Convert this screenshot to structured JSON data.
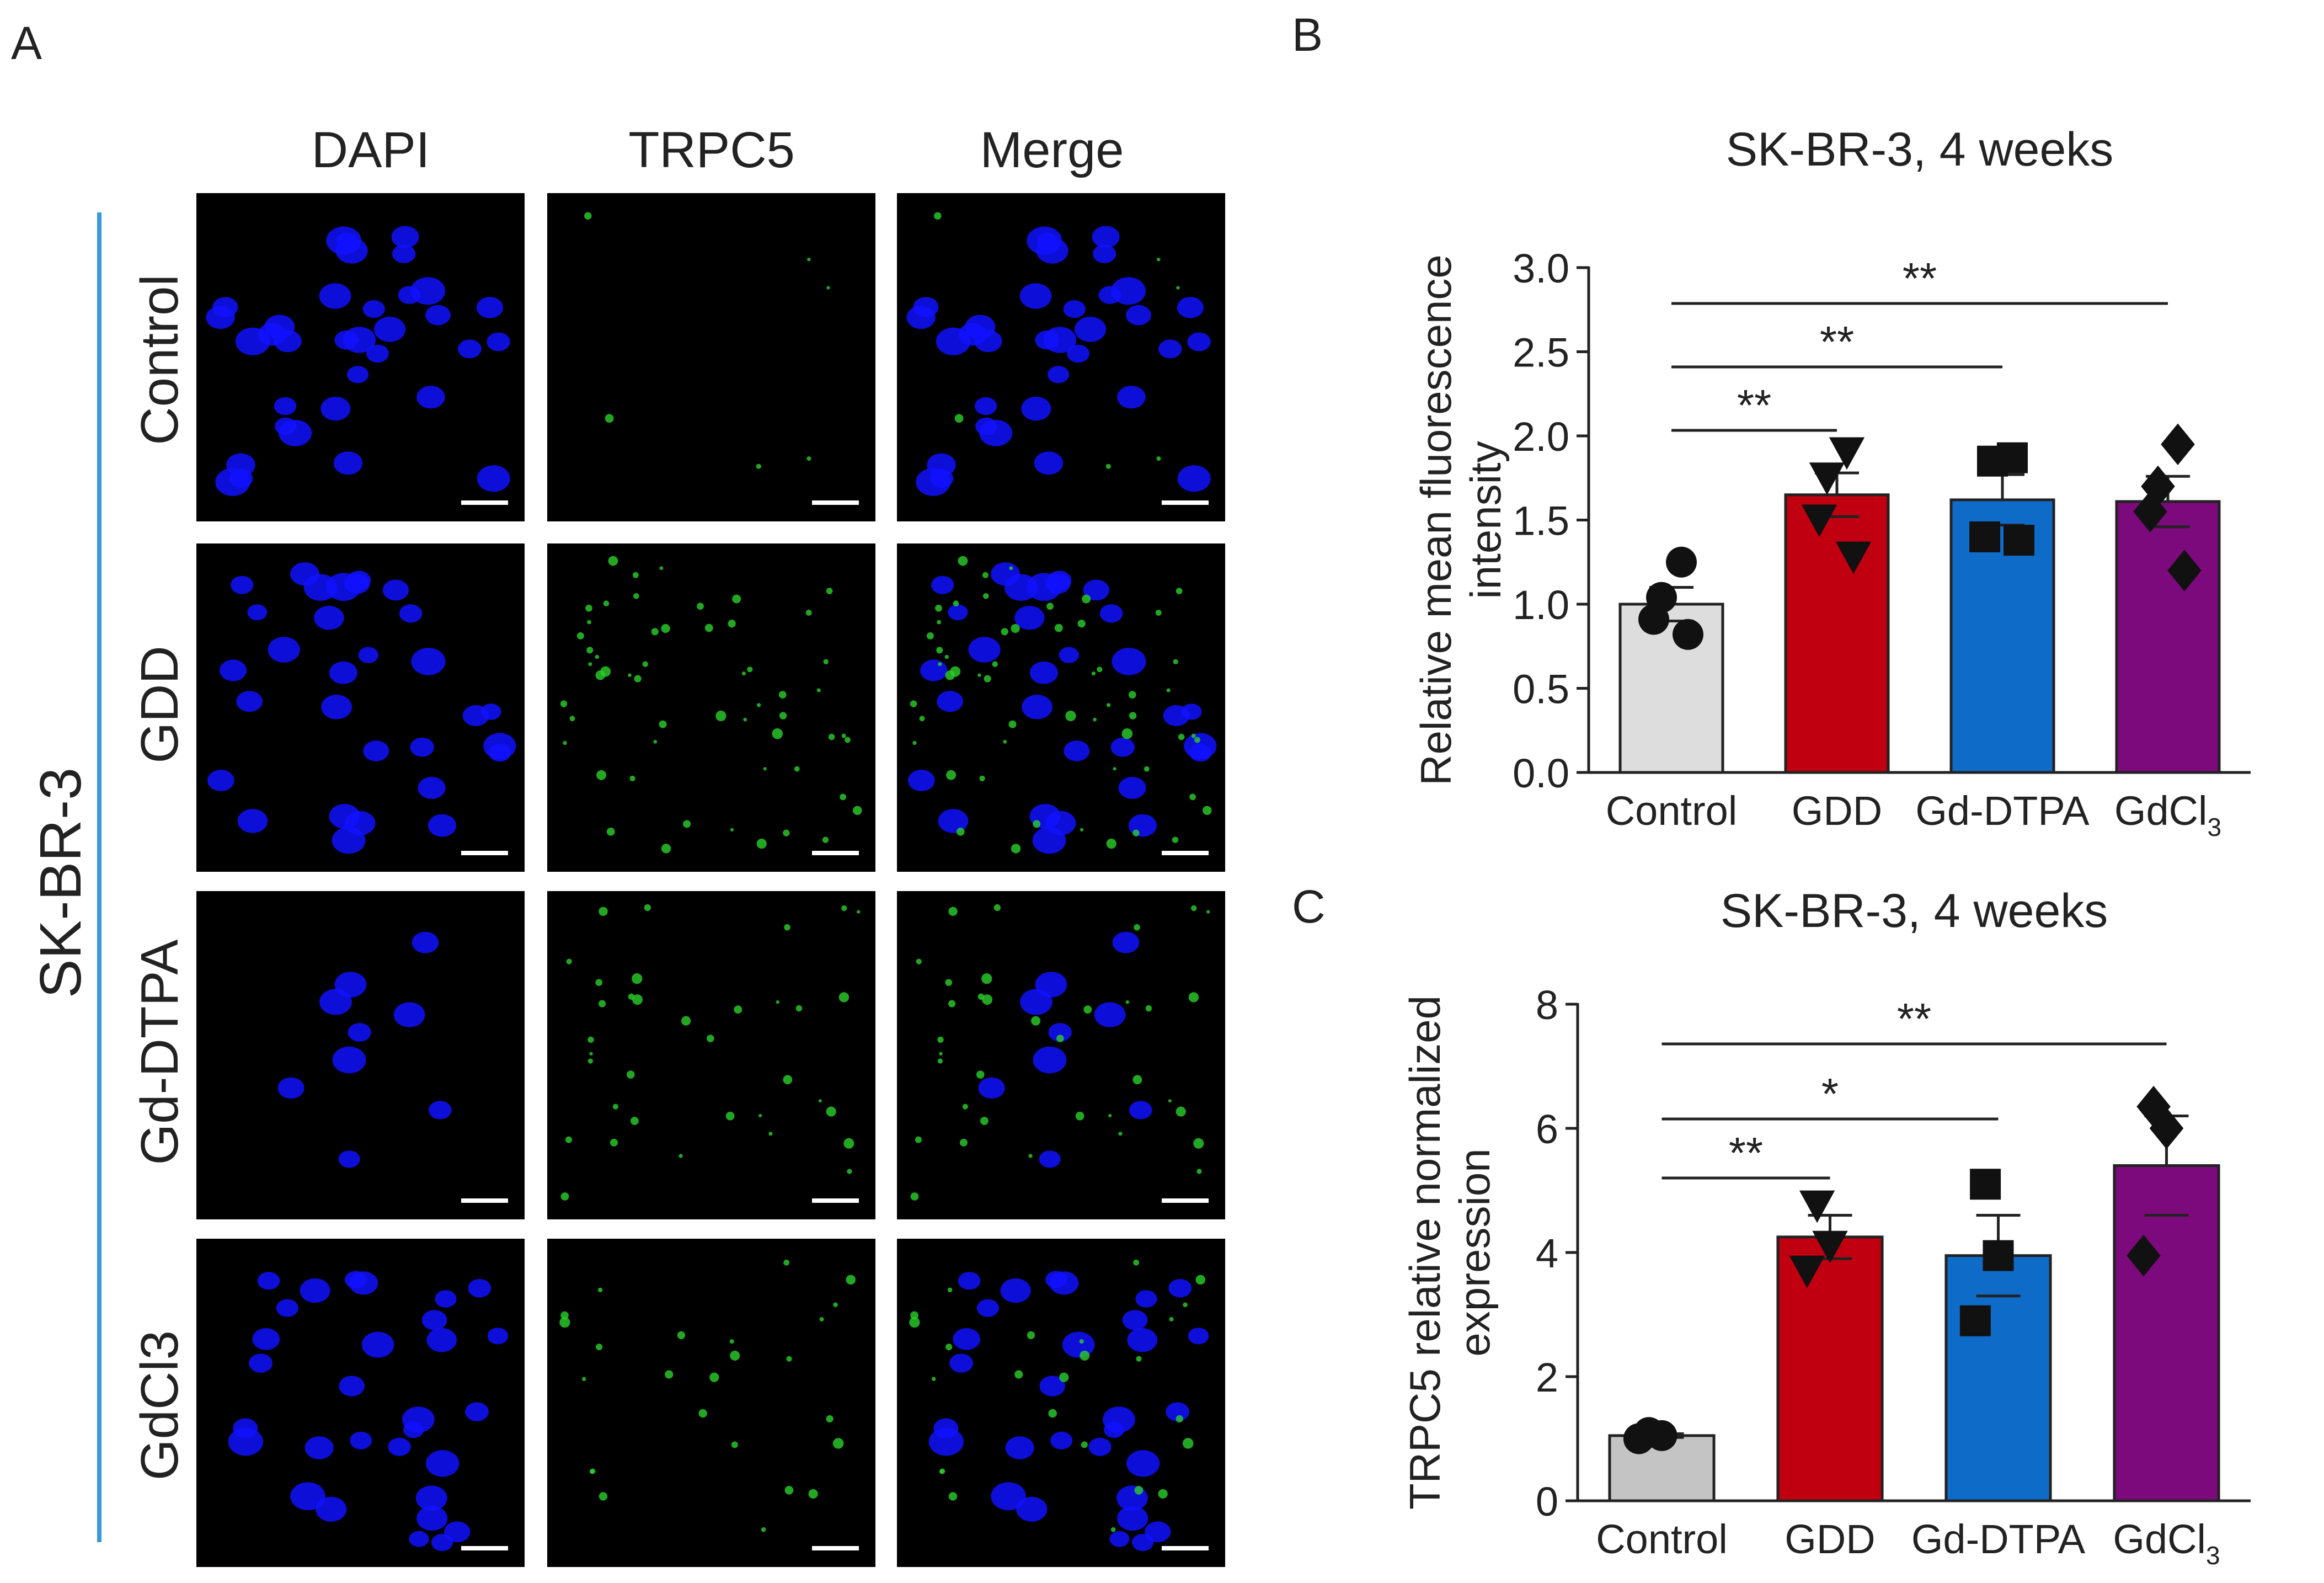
{
  "panel_labels": {
    "a": "A",
    "b": "B",
    "c": "C"
  },
  "panel_a": {
    "columns": [
      "DAPI",
      "TRPC5",
      "Merge"
    ],
    "rows": [
      "Control",
      "GDD",
      "Gd-DTPA",
      "GdCl3"
    ],
    "cell_line": "SK-BR-3",
    "colors": {
      "dapi": "#1010ff",
      "trpc5": "#2ad12a",
      "line": "#3a9ad9"
    }
  },
  "chart_data": [
    {
      "type": "bar",
      "title": "SK-BR-3, 4 weeks",
      "ylabel": "Relative mean fluorescence intensity",
      "xlabel": "",
      "categories": [
        "Control",
        "GDD",
        "Gd-DTPA",
        "GdCl3"
      ],
      "category_display": [
        {
          "base": "Control",
          "sub": ""
        },
        {
          "base": "GDD",
          "sub": ""
        },
        {
          "base": "Gd-DTPA",
          "sub": ""
        },
        {
          "base": "GdCl",
          "sub": "3"
        }
      ],
      "values": [
        1.0,
        1.65,
        1.62,
        1.61
      ],
      "errors": [
        0.1,
        0.13,
        0.15,
        0.15
      ],
      "points": [
        [
          1.25,
          1.04,
          0.91,
          0.82
        ],
        [
          1.9,
          1.75,
          1.5,
          1.28
        ],
        [
          1.87,
          1.85,
          1.4,
          1.38
        ],
        [
          1.95,
          1.7,
          1.55,
          1.2
        ]
      ],
      "markers": [
        "circle",
        "triangle-down",
        "square",
        "diamond"
      ],
      "colors": [
        "#dddddd",
        "#c00010",
        "#0e6cc8",
        "#7d0a7d"
      ],
      "ylim": [
        0,
        3.0
      ],
      "yticks": [
        0.0,
        0.5,
        1.0,
        1.5,
        2.0,
        2.5,
        3.0
      ],
      "ytick_labels": [
        "0.0",
        "0.5",
        "1.0",
        "1.5",
        "2.0",
        "2.5",
        "3.0"
      ],
      "significance": [
        {
          "from": 0,
          "to": 1,
          "label": "**"
        },
        {
          "from": 0,
          "to": 2,
          "label": "**"
        },
        {
          "from": 0,
          "to": 3,
          "label": "**"
        }
      ]
    },
    {
      "type": "bar",
      "title": "SK-BR-3, 4 weeks",
      "ylabel": "TRPC5 relative normalized expression",
      "xlabel": "",
      "categories": [
        "Control",
        "GDD",
        "Gd-DTPA",
        "GdCl3"
      ],
      "category_display": [
        {
          "base": "Control",
          "sub": ""
        },
        {
          "base": "GDD",
          "sub": ""
        },
        {
          "base": "Gd-DTPA",
          "sub": ""
        },
        {
          "base": "GdCl",
          "sub": "3"
        }
      ],
      "values": [
        1.05,
        4.25,
        3.95,
        5.4
      ],
      "errors": [
        0.03,
        0.35,
        0.65,
        0.8
      ],
      "points": [
        [
          1.1,
          1.05,
          1.0
        ],
        [
          4.75,
          4.1,
          3.7
        ],
        [
          5.1,
          3.95,
          2.9
        ],
        [
          6.35,
          6.0,
          3.95
        ]
      ],
      "markers": [
        "circle",
        "triangle-down",
        "square",
        "diamond"
      ],
      "colors": [
        "#c4c4c4",
        "#c00010",
        "#0e6cc8",
        "#7d0a7d"
      ],
      "ylim": [
        0,
        8
      ],
      "yticks": [
        0,
        2,
        4,
        6,
        8
      ],
      "ytick_labels": [
        "0",
        "2",
        "4",
        "6",
        "8"
      ],
      "significance": [
        {
          "from": 0,
          "to": 1,
          "label": "**"
        },
        {
          "from": 0,
          "to": 2,
          "label": "*"
        },
        {
          "from": 0,
          "to": 3,
          "label": "**"
        }
      ]
    }
  ]
}
